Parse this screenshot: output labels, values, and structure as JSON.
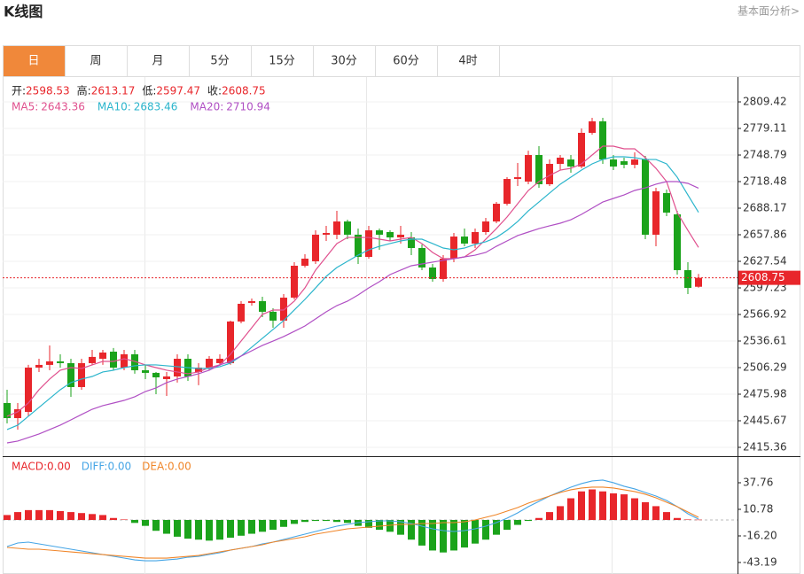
{
  "header": {
    "title": "K线图",
    "link": "基本面分析>"
  },
  "tabs": [
    "日",
    "周",
    "月",
    "5分",
    "15分",
    "30分",
    "60分",
    "4时"
  ],
  "chart_data": [
    {
      "type": "candlestick",
      "info_labels": [
        "开:",
        "高:",
        "低:",
        "收:"
      ],
      "up_color": "#e8262b",
      "down_color": "#1ba31b",
      "open": [
        2465.9,
        2448.7,
        2455.8,
        2506.3,
        2509.4,
        2513.4,
        2511.4,
        2484.1,
        2511.4,
        2516.4,
        2524.5,
        2506.3,
        2521.5,
        2503.3,
        2500.3,
        2493.2,
        2496.2,
        2516.4,
        2501.3,
        2506.3,
        2511.4,
        2511.4,
        2558.9,
        2580.1,
        2582.1,
        2570.0,
        2559.9,
        2586.1,
        2622.5,
        2627.6,
        2657.9,
        2657.9,
        2673.0,
        2657.9,
        2632.6,
        2662.9,
        2660.9,
        2654.8,
        2654.8,
        2642.7,
        2620.5,
        2607.4,
        2630.6,
        2655.8,
        2647.8,
        2660.9,
        2673.0,
        2693.2,
        2721.5,
        2718.5,
        2748.8,
        2715.5,
        2738.7,
        2743.7,
        2735.7,
        2774.1,
        2787.2,
        2743.7,
        2741.7,
        2737.7,
        2743.7,
        2657.9,
        2705.4,
        2681.1,
        2617.5,
        2598.53
      ],
      "high": [
        2481.1,
        2465.9,
        2509.4,
        2516.4,
        2531.6,
        2521.5,
        2516.4,
        2516.4,
        2526.5,
        2526.5,
        2528.6,
        2526.5,
        2526.5,
        2509.4,
        2501.3,
        2501.3,
        2521.5,
        2521.5,
        2511.4,
        2519.5,
        2521.5,
        2559.9,
        2582.1,
        2585.1,
        2587.1,
        2574.0,
        2590.2,
        2626.6,
        2635.6,
        2662.9,
        2668.0,
        2685.1,
        2675.0,
        2664.9,
        2668.0,
        2664.9,
        2662.9,
        2668.0,
        2660.9,
        2646.8,
        2624.5,
        2634.6,
        2659.9,
        2664.9,
        2664.9,
        2677.1,
        2695.2,
        2723.5,
        2739.7,
        2753.8,
        2758.9,
        2743.7,
        2748.8,
        2748.8,
        2779.1,
        2791.2,
        2791.2,
        2748.8,
        2745.8,
        2751.8,
        2747.8,
        2711.4,
        2709.4,
        2685.1,
        2626.6,
        2613.17
      ],
      "low": [
        2442.7,
        2435.6,
        2450.8,
        2501.3,
        2503.3,
        2506.3,
        2473.0,
        2481.1,
        2509.4,
        2509.4,
        2503.3,
        2503.3,
        2499.3,
        2493.2,
        2476.0,
        2474.0,
        2489.2,
        2491.2,
        2486.2,
        2503.3,
        2508.4,
        2509.4,
        2556.8,
        2577.0,
        2563.9,
        2551.8,
        2551.8,
        2584.1,
        2620.5,
        2624.5,
        2650.8,
        2652.8,
        2652.8,
        2624.5,
        2630.6,
        2640.7,
        2650.8,
        2647.8,
        2634.6,
        2617.5,
        2604.3,
        2604.3,
        2626.6,
        2644.7,
        2642.7,
        2657.9,
        2671.0,
        2691.2,
        2713.4,
        2715.5,
        2711.4,
        2713.4,
        2731.6,
        2728.6,
        2733.6,
        2772.0,
        2738.7,
        2731.6,
        2733.6,
        2733.6,
        2652.8,
        2644.7,
        2679.1,
        2612.4,
        2590.2,
        2597.47
      ],
      "close": [
        2448.7,
        2458.8,
        2506.3,
        2509.4,
        2513.4,
        2511.4,
        2484.1,
        2511.4,
        2518.5,
        2523.5,
        2506.3,
        2521.5,
        2503.3,
        2500.3,
        2495.2,
        2496.2,
        2516.4,
        2496.2,
        2506.3,
        2516.4,
        2516.4,
        2558.9,
        2579.1,
        2582.1,
        2570.0,
        2559.9,
        2586.1,
        2622.5,
        2630.6,
        2657.9,
        2659.9,
        2673.0,
        2657.9,
        2632.6,
        2662.9,
        2657.9,
        2654.8,
        2657.9,
        2642.7,
        2620.5,
        2607.4,
        2630.6,
        2655.8,
        2647.8,
        2660.9,
        2673.0,
        2693.2,
        2721.5,
        2723.5,
        2748.8,
        2715.5,
        2738.7,
        2745.8,
        2735.7,
        2774.1,
        2787.2,
        2743.7,
        2735.7,
        2737.7,
        2743.7,
        2657.9,
        2707.4,
        2683.1,
        2617.5,
        2597.2,
        2608.75
      ],
      "series": [
        {
          "name": "MA5:",
          "color": "#e0508e",
          "values": [
            2450.8,
            2455.8,
            2465.9,
            2481.1,
            2493.2,
            2503.3,
            2506.3,
            2505.3,
            2509.4,
            2513.4,
            2513.4,
            2516.4,
            2513.4,
            2509.4,
            2506.3,
            2503.3,
            2501.3,
            2499.3,
            2501.3,
            2506.3,
            2509.4,
            2521.5,
            2536.6,
            2551.8,
            2567.0,
            2572.0,
            2572.0,
            2582.1,
            2597.2,
            2617.5,
            2632.6,
            2647.8,
            2654.8,
            2654.8,
            2654.8,
            2652.8,
            2650.8,
            2652.8,
            2654.8,
            2647.8,
            2637.7,
            2630.6,
            2630.6,
            2632.6,
            2640.7,
            2652.8,
            2664.9,
            2678.1,
            2693.2,
            2708.4,
            2718.5,
            2725.6,
            2731.6,
            2733.6,
            2738.7,
            2748.8,
            2758.9,
            2758.9,
            2755.9,
            2755.9,
            2745.8,
            2733.6,
            2718.5,
            2683.1,
            2662.9,
            2643.36
          ]
        },
        {
          "name": "MA10:",
          "color": "#2bb5cc",
          "values": [
            2435.6,
            2440.7,
            2450.8,
            2460.9,
            2471.0,
            2481.1,
            2489.2,
            2493.2,
            2496.2,
            2501.3,
            2503.3,
            2506.3,
            2508.4,
            2509.4,
            2509.4,
            2508.4,
            2507.4,
            2506.3,
            2505.3,
            2505.3,
            2507.4,
            2511.4,
            2519.5,
            2529.6,
            2539.7,
            2549.8,
            2559.9,
            2572.0,
            2584.1,
            2597.2,
            2610.4,
            2620.5,
            2627.6,
            2634.6,
            2640.7,
            2644.7,
            2647.8,
            2650.8,
            2652.8,
            2652.8,
            2647.8,
            2642.7,
            2640.7,
            2642.7,
            2646.8,
            2649.8,
            2654.8,
            2662.9,
            2673.0,
            2685.1,
            2695.2,
            2705.4,
            2715.5,
            2723.5,
            2731.6,
            2738.7,
            2743.7,
            2746.8,
            2746.8,
            2745.8,
            2743.7,
            2743.7,
            2738.7,
            2723.5,
            2703.3,
            2683.46
          ]
        },
        {
          "name": "MA20:",
          "color": "#b04fc4",
          "values": [
            2420.4,
            2422.5,
            2426.5,
            2430.6,
            2435.6,
            2440.7,
            2446.7,
            2452.8,
            2458.8,
            2462.9,
            2465.9,
            2468.9,
            2473.0,
            2479.0,
            2483.1,
            2489.2,
            2493.2,
            2496.2,
            2499.3,
            2503.3,
            2509.4,
            2513.4,
            2519.5,
            2525.5,
            2531.6,
            2536.6,
            2541.7,
            2547.7,
            2553.8,
            2561.9,
            2570.0,
            2577.0,
            2582.1,
            2589.2,
            2597.2,
            2604.3,
            2612.4,
            2617.5,
            2622.5,
            2624.5,
            2626.6,
            2628.6,
            2630.6,
            2632.6,
            2634.6,
            2637.7,
            2644.7,
            2650.8,
            2656.9,
            2660.9,
            2664.9,
            2668.0,
            2671.0,
            2675.0,
            2681.1,
            2688.2,
            2695.2,
            2699.3,
            2703.3,
            2708.4,
            2711.4,
            2715.5,
            2718.5,
            2718.5,
            2716.5,
            2710.94
          ]
        }
      ],
      "ylim": [
        2405.26,
        2836.72
      ],
      "yticks": [
        2809.42,
        2779.11,
        2748.79,
        2718.48,
        2688.17,
        2657.86,
        2627.54,
        2597.23,
        2566.92,
        2536.61,
        2506.29,
        2475.98,
        2445.67,
        2415.36
      ],
      "grid": true
    },
    {
      "type": "macd",
      "legend_values": [
        "0.00",
        "0.00",
        "0.00"
      ],
      "up_color": "#e8262b",
      "down_color": "#1ba31b",
      "series": [
        {
          "name": "MACD:",
          "color": "#e8262b",
          "values": [
            5,
            8,
            10,
            10,
            10,
            9,
            8,
            7,
            6,
            5,
            2,
            0.5,
            -3,
            -6,
            -11,
            -14,
            -17,
            -19,
            -20,
            -21,
            -20,
            -18,
            -16,
            -14,
            -12,
            -10,
            -7,
            -4,
            -2,
            -1,
            -1,
            -2,
            -3,
            -6,
            -8,
            -10,
            -12,
            -15,
            -20,
            -26,
            -31,
            -33,
            -31,
            -28,
            -24,
            -20,
            -15,
            -10,
            -5,
            -1,
            2,
            8,
            14,
            22,
            29,
            31,
            29,
            27,
            26,
            22,
            18,
            14,
            8,
            2,
            0.5,
            0.3
          ]
        },
        {
          "name": "DIFF:",
          "color": "#45a5e6",
          "values": [
            -27.0,
            -23.4,
            -22.5,
            -24.3,
            -26.1,
            -27.9,
            -29.7,
            -31.5,
            -33.3,
            -35.1,
            -36.9,
            -38.7,
            -40.5,
            -41.4,
            -41.4,
            -40.5,
            -39.6,
            -37.8,
            -36.9,
            -35.1,
            -33.3,
            -30.6,
            -28.8,
            -27.0,
            -24.3,
            -22.5,
            -19.8,
            -17.1,
            -14.4,
            -11.7,
            -9.0,
            -6.3,
            -4.5,
            -2.7,
            -1.8,
            -0.9,
            -0.9,
            -1.8,
            -3.6,
            -6.3,
            -9.0,
            -10.8,
            -11.7,
            -10.8,
            -9.0,
            -6.3,
            -2.7,
            1.8,
            7.2,
            13.5,
            18.9,
            24.3,
            28.8,
            33.3,
            36.9,
            39.6,
            40.5,
            37.8,
            34.2,
            31.5,
            27.9,
            24.3,
            19.8,
            13.5,
            6.3,
            0.9
          ]
        },
        {
          "name": "DEA:",
          "color": "#f0862a",
          "values": [
            -27.9,
            -28.8,
            -29.7,
            -29.7,
            -30.6,
            -31.5,
            -32.4,
            -33.3,
            -34.2,
            -35.1,
            -36.0,
            -36.9,
            -37.8,
            -38.7,
            -38.7,
            -38.7,
            -37.8,
            -36.9,
            -36.0,
            -34.2,
            -32.4,
            -30.6,
            -28.8,
            -27.0,
            -25.2,
            -22.5,
            -20.7,
            -18.9,
            -17.1,
            -14.4,
            -12.6,
            -10.8,
            -9.0,
            -8.1,
            -7.2,
            -6.3,
            -5.4,
            -4.5,
            -4.5,
            -3.6,
            -3.6,
            -2.7,
            -2.7,
            -1.8,
            0,
            2.7,
            5.4,
            9.0,
            12.6,
            17.1,
            20.7,
            24.3,
            27.9,
            30.6,
            32.4,
            33.3,
            33.3,
            32.4,
            30.6,
            28.8,
            26.1,
            22.5,
            18.0,
            13.5,
            8.1,
            2.7
          ]
        }
      ],
      "ylim": [
        -54.87,
        63.84
      ],
      "yticks": [
        37.76,
        10.78,
        {
          "value": -16.2,
          "label": "-16.20"
        },
        -43.19
      ]
    }
  ]
}
